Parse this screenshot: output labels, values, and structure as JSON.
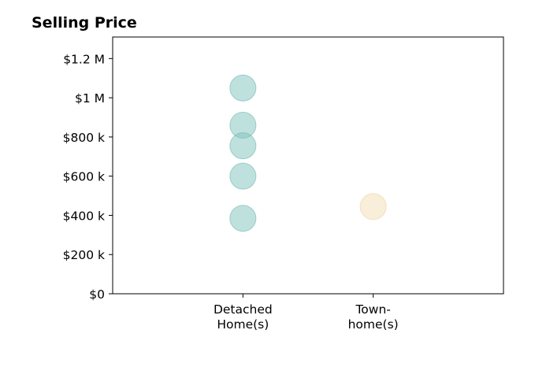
{
  "chart_data": {
    "type": "scatter",
    "title": "Selling Price",
    "xlabel": "",
    "ylabel": "",
    "categories": [
      [
        "Detached",
        "Home(s)"
      ],
      [
        "Town-",
        "home(s)"
      ]
    ],
    "xlim": [
      -1,
      2
    ],
    "ylim": [
      0,
      1310000
    ],
    "yticks": [
      0,
      200000,
      400000,
      600000,
      800000,
      1000000,
      1200000
    ],
    "ytick_labels": [
      "$0",
      "$200 k",
      "$400 k",
      "$600 k",
      "$800 k",
      "$1 M",
      "$1.2 M"
    ],
    "grid": false,
    "legend": "none",
    "series": [
      {
        "category_index": 0,
        "color": "#7fc4bd",
        "edge_color": "#6bb5ad",
        "values": [
          1050000,
          860000,
          755000,
          600000,
          385000
        ]
      },
      {
        "category_index": 1,
        "color": "#f3ddb3",
        "edge_color": "#ecd19e",
        "values": [
          445000
        ]
      }
    ]
  }
}
